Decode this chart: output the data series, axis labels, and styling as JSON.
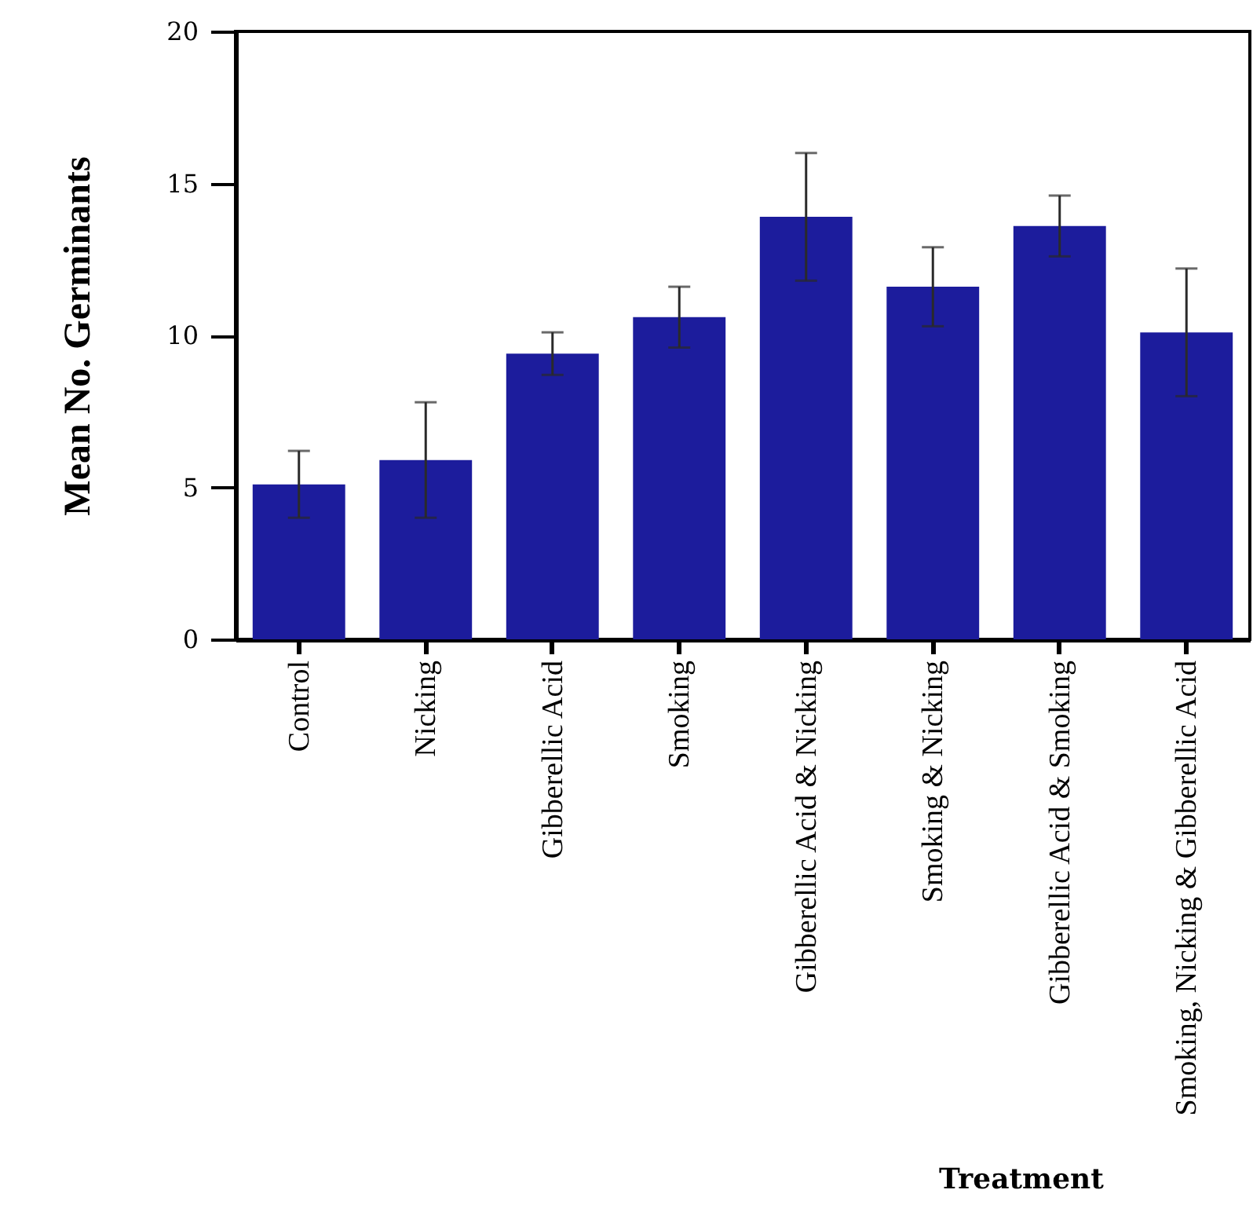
{
  "chart_data": {
    "type": "bar",
    "xlabel": "Treatment",
    "ylabel": "Mean No. Germinants",
    "categories": [
      "Control",
      "Nicking",
      "Gibberellic Acid",
      "Smoking",
      "Gibberellic Acid & Nicking",
      "Smoking & Nicking",
      "Gibberellic Acid & Smoking",
      "Smoking, Nicking & Gibberellic Acid"
    ],
    "values": [
      5.1,
      5.9,
      9.4,
      10.6,
      13.9,
      11.6,
      13.6,
      10.1
    ],
    "errors": [
      1.1,
      1.9,
      0.7,
      1.0,
      2.1,
      1.3,
      1.0,
      2.1
    ],
    "color": "#1c1c9c",
    "ylim": [
      0,
      20
    ],
    "yticks": [
      0,
      5,
      10,
      15,
      20
    ],
    "grid": false
  }
}
